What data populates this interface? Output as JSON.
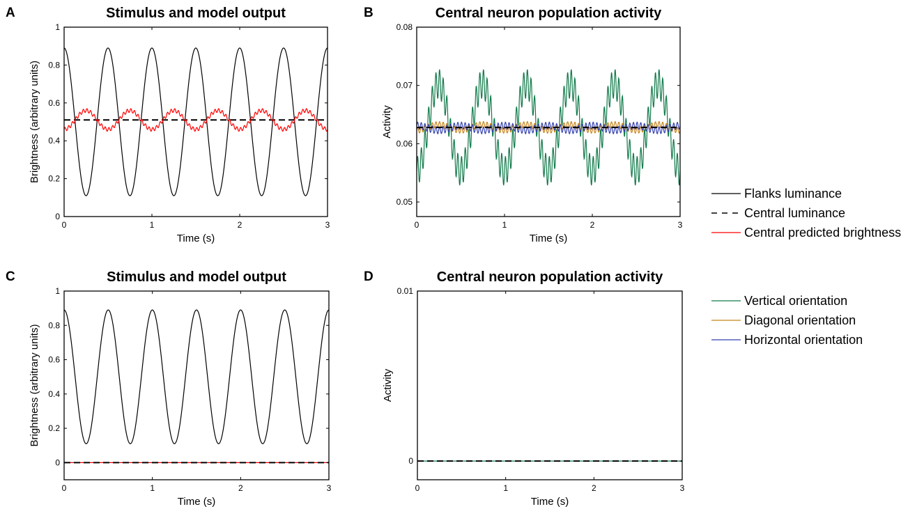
{
  "chart_data": [
    {
      "panel": "A",
      "type": "line",
      "title": "Stimulus and model output",
      "xlabel": "Time (s)",
      "ylabel": "Brightness (arbitrary units)",
      "xlim": [
        0,
        3
      ],
      "ylim": [
        0,
        1
      ],
      "xticks": [
        "0",
        "1",
        "2",
        "3"
      ],
      "yticks": [
        "0",
        "0.2",
        "0.4",
        "0.6",
        "0.8",
        "1"
      ],
      "grid": false,
      "series": [
        {
          "name": "Flanks luminance",
          "color": "#000000",
          "style": "solid",
          "kind": "cosine",
          "frequency_hz": 2,
          "mean": 0.5,
          "amplitude": 0.39
        },
        {
          "name": "Central luminance",
          "color": "#000000",
          "style": "dashed",
          "kind": "constant",
          "value": 0.51
        },
        {
          "name": "Central predicted brightness",
          "color": "#ff0000",
          "style": "solid",
          "kind": "cosine",
          "frequency_hz": 2,
          "mean": 0.51,
          "amplitude": -0.05,
          "ripple_hz": 24,
          "ripple_amplitude": 0.01
        }
      ]
    },
    {
      "panel": "B",
      "type": "line",
      "title": "Central neuron population activity",
      "xlabel": "Time (s)",
      "ylabel": "Activity",
      "xlim": [
        0,
        3
      ],
      "ylim": [
        0.0475,
        0.08
      ],
      "xticks": [
        "0",
        "1",
        "2",
        "3"
      ],
      "yticks": [
        "0.05",
        "0.06",
        "0.07",
        "0.08"
      ],
      "grid": false,
      "series": [
        {
          "name": "Vertical orientation",
          "color": "#117a4a",
          "style": "solid",
          "kind": "cosine",
          "frequency_hz": 2,
          "mean": 0.0628,
          "amplitude": -0.0075,
          "ripple_hz": 24,
          "ripple_amplitude": 0.0025
        },
        {
          "name": "Diagonal orientation",
          "color": "#c8841a",
          "style": "solid",
          "kind": "cosine",
          "frequency_hz": 2,
          "mean": 0.0628,
          "amplitude": -0.0005,
          "ripple_hz": 24,
          "ripple_amplitude": 0.0005
        },
        {
          "name": "Horizontal orientation",
          "color": "#3340b0",
          "style": "solid",
          "kind": "cosine",
          "frequency_hz": 2,
          "mean": 0.0627,
          "amplitude": 0.0004,
          "ripple_hz": 24,
          "ripple_amplitude": 0.0006
        },
        {
          "name": "Central luminance",
          "color": "#000000",
          "style": "dashed",
          "kind": "constant",
          "value": 0.0628
        }
      ]
    },
    {
      "panel": "C",
      "type": "line",
      "title": "Stimulus and model output",
      "xlabel": "Time (s)",
      "ylabel": "Brightness (arbitrary units)",
      "xlim": [
        0,
        3
      ],
      "ylim": [
        -0.1,
        1
      ],
      "xticks": [
        "0",
        "1",
        "2",
        "3"
      ],
      "yticks": [
        "0",
        "0.2",
        "0.4",
        "0.6",
        "0.8",
        "1"
      ],
      "grid": false,
      "series": [
        {
          "name": "Flanks luminance",
          "color": "#000000",
          "style": "solid",
          "kind": "cosine",
          "frequency_hz": 2,
          "mean": 0.5,
          "amplitude": 0.39
        },
        {
          "name": "Central predicted brightness",
          "color": "#ff0000",
          "style": "solid",
          "kind": "constant",
          "value": 0
        },
        {
          "name": "Central luminance",
          "color": "#000000",
          "style": "dashed",
          "kind": "constant",
          "value": 0
        }
      ]
    },
    {
      "panel": "D",
      "type": "line",
      "title": "Central neuron population activity",
      "xlabel": "Time (s)",
      "ylabel": "Activity",
      "xlim": [
        0,
        3
      ],
      "ylim": [
        -0.0011,
        0.01
      ],
      "xticks": [
        "0",
        "1",
        "2",
        "3"
      ],
      "yticks": [
        "0",
        "0.01"
      ],
      "grid": false,
      "series": [
        {
          "name": "Vertical orientation",
          "color": "#117a4a",
          "style": "solid",
          "kind": "constant",
          "value": 0
        },
        {
          "name": "Central luminance",
          "color": "#000000",
          "style": "dashed",
          "kind": "constant",
          "value": 0
        }
      ]
    }
  ],
  "legend_top": {
    "placement": "right of panel B",
    "items": [
      {
        "label": "Flanks luminance",
        "color": "#000000",
        "style": "solid"
      },
      {
        "label": "Central luminance",
        "color": "#000000",
        "style": "dashed"
      },
      {
        "label": "Central predicted brightness",
        "color": "#ff0000",
        "style": "solid"
      }
    ]
  },
  "legend_bottom": {
    "placement": "right of panel D",
    "items": [
      {
        "label": "Vertical orientation",
        "color": "#117a4a",
        "style": "solid"
      },
      {
        "label": "Diagonal orientation",
        "color": "#c8841a",
        "style": "solid"
      },
      {
        "label": "Horizontal orientation",
        "color": "#3340b0",
        "style": "solid"
      }
    ]
  }
}
